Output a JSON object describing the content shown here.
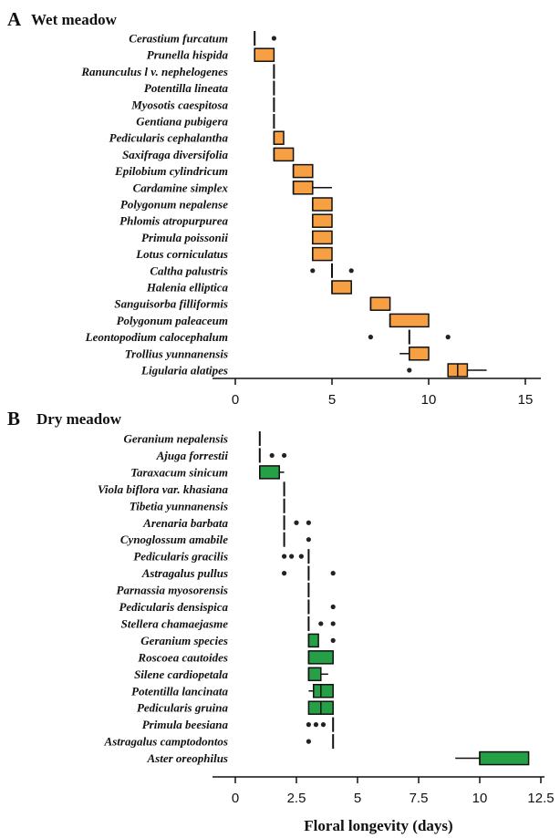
{
  "chart_data": [
    {
      "type": "box",
      "panel": "A",
      "title": "Wet meadow",
      "color": "#f7a043",
      "xlim": [
        0,
        15
      ],
      "xticks": [
        0,
        5,
        10,
        15
      ],
      "xtick_labels": [
        "0",
        "5",
        "10",
        "15"
      ],
      "species": [
        {
          "name": "Cerastium furcatum",
          "median": 1,
          "outliers": [
            2
          ]
        },
        {
          "name": "Prunella hispida",
          "q1": 1,
          "median": 1,
          "q3": 2,
          "outliers": []
        },
        {
          "name": "Ranunculus l v. nephelogenes",
          "median": 2,
          "outliers": []
        },
        {
          "name": "Potentilla lineata",
          "median": 2,
          "outliers": []
        },
        {
          "name": "Myosotis caespitosa",
          "median": 2,
          "outliers": []
        },
        {
          "name": "Gentiana pubigera",
          "median": 2,
          "outliers": []
        },
        {
          "name": "Pedicularis cephalantha",
          "q1": 2,
          "median": 2,
          "q3": 2.5,
          "outliers": []
        },
        {
          "name": "Saxifraga diversifolia",
          "q1": 2,
          "median": 2,
          "q3": 3,
          "outliers": []
        },
        {
          "name": "Epilobium cylindricum",
          "q1": 3,
          "median": 3,
          "q3": 4,
          "outliers": []
        },
        {
          "name": "Cardamine simplex",
          "q1": 3,
          "median": 3,
          "q3": 4,
          "whisker_high": 5,
          "outliers": []
        },
        {
          "name": "Polygonum nepalense",
          "q1": 4,
          "median": 4,
          "q3": 5,
          "outliers": []
        },
        {
          "name": "Phlomis atropurpurea",
          "q1": 4,
          "median": 4,
          "q3": 5,
          "outliers": []
        },
        {
          "name": "Primula poissonii",
          "q1": 4,
          "median": 4,
          "q3": 5,
          "outliers": []
        },
        {
          "name": "Lotus corniculatus",
          "q1": 4,
          "median": 4,
          "q3": 5,
          "outliers": []
        },
        {
          "name": "Caltha palustris",
          "median": 5,
          "outliers": [
            4,
            6
          ]
        },
        {
          "name": "Halenia elliptica",
          "q1": 5,
          "median": 5,
          "q3": 6,
          "outliers": []
        },
        {
          "name": "Sanguisorba filliformis",
          "q1": 7,
          "median": 7,
          "q3": 8,
          "outliers": []
        },
        {
          "name": "Polygonum paleaceum",
          "q1": 8,
          "median": 8,
          "q3": 10,
          "outliers": []
        },
        {
          "name": "Leontopodium calocephalum",
          "median": 9,
          "outliers": [
            7,
            11
          ]
        },
        {
          "name": "Trollius yunnanensis",
          "q1": 9,
          "median": 9,
          "q3": 10,
          "whisker_low": 8.5,
          "outliers": []
        },
        {
          "name": "Ligularia alatipes",
          "q1": 11,
          "median": 11.5,
          "q3": 12,
          "whisker_high": 13,
          "outliers": [
            9
          ]
        }
      ]
    },
    {
      "type": "box",
      "panel": "B",
      "title": "Dry meadow",
      "color": "#26a046",
      "xlim": [
        0,
        12.5
      ],
      "xticks": [
        0,
        2.5,
        5,
        7.5,
        10,
        12.5
      ],
      "xtick_labels": [
        "0",
        "2.5",
        "5",
        "7.5",
        "10",
        "12.5"
      ],
      "xlabel": "Floral longevity (days)",
      "species": [
        {
          "name": "Geranium nepalensis",
          "median": 1,
          "outliers": []
        },
        {
          "name": "Ajuga forrestii",
          "median": 1,
          "outliers": [
            1.5,
            2
          ]
        },
        {
          "name": "Taraxacum sinicum",
          "q1": 1,
          "median": 1,
          "q3": 1.8,
          "whisker_high": 2,
          "outliers": []
        },
        {
          "name": "Viola biflora var. khasiana",
          "median": 2,
          "outliers": []
        },
        {
          "name": "Tibetia yunnanensis",
          "median": 2,
          "outliers": []
        },
        {
          "name": "Arenaria barbata",
          "median": 2,
          "outliers": [
            2.5,
            3
          ]
        },
        {
          "name": "Cynoglossum amabile",
          "median": 2,
          "outliers": [
            3
          ]
        },
        {
          "name": "Pedicularis gracilis",
          "median": 3,
          "outliers": [
            2,
            2.3,
            2.7
          ]
        },
        {
          "name": "Astragalus pullus",
          "median": 3,
          "outliers": [
            2,
            4
          ]
        },
        {
          "name": "Parnassia myosorensis",
          "median": 3,
          "outliers": []
        },
        {
          "name": "Pedicularis densispica",
          "median": 3,
          "outliers": [
            4
          ]
        },
        {
          "name": "Stellera chamaejasme",
          "median": 3,
          "outliers": [
            3.5,
            4
          ]
        },
        {
          "name": "Geranium species",
          "q1": 3,
          "median": 3,
          "q3": 3.4,
          "outliers": [
            4
          ]
        },
        {
          "name": "Roscoea cautoides",
          "q1": 3,
          "median": 3,
          "q3": 4,
          "outliers": []
        },
        {
          "name": "Silene cardiopetala",
          "q1": 3,
          "median": 3,
          "q3": 3.5,
          "whisker_high": 3.8,
          "outliers": []
        },
        {
          "name": "Potentilla lancinata",
          "q1": 3.2,
          "median": 3.5,
          "q3": 4,
          "whisker_low": 3,
          "outliers": []
        },
        {
          "name": "Pedicularis gruina",
          "q1": 3,
          "median": 3.5,
          "q3": 4,
          "outliers": []
        },
        {
          "name": "Primula beesiana",
          "median": 4,
          "outliers": [
            3,
            3.3,
            3.6
          ]
        },
        {
          "name": "Astragalus camptodontos",
          "median": 4,
          "outliers": [
            3
          ]
        },
        {
          "name": "Aster oreophilus",
          "q1": 10,
          "median": 10,
          "q3": 12,
          "whisker_low": 9,
          "outliers": []
        }
      ]
    }
  ]
}
